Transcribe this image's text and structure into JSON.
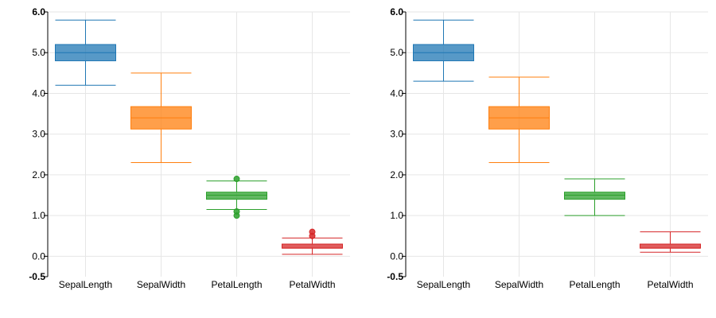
{
  "chart_data": [
    {
      "type": "boxplot",
      "ylim": [
        -0.5,
        6.0
      ],
      "yticks": [
        {
          "value": 6.0,
          "label": "6.0"
        },
        {
          "value": 5.0,
          "label": "5.0"
        },
        {
          "value": 4.0,
          "label": "4.0"
        },
        {
          "value": 3.0,
          "label": "3.0"
        },
        {
          "value": 2.0,
          "label": "2.0"
        },
        {
          "value": 1.0,
          "label": "1.0"
        },
        {
          "value": 0.0,
          "label": "0.0"
        },
        {
          "value": -0.5,
          "label": "-0.5"
        }
      ],
      "grid": true,
      "categories": [
        "SepalLength",
        "SepalWidth",
        "PetalLength",
        "PetalWidth"
      ],
      "colors": [
        "#1f77b4",
        "#ff7f0e",
        "#2ca02c",
        "#d62728"
      ],
      "boxes": [
        {
          "whisker_low": 4.2,
          "q1": 4.8,
          "median": 5.0,
          "q3": 5.2,
          "whisker_high": 5.8,
          "outliers": []
        },
        {
          "whisker_low": 2.3,
          "q1": 3.125,
          "median": 3.4,
          "q3": 3.675,
          "whisker_high": 4.5,
          "outliers": []
        },
        {
          "whisker_low": 1.15,
          "q1": 1.4,
          "median": 1.5,
          "q3": 1.575,
          "whisker_high": 1.85,
          "outliers": [
            1.0,
            1.1,
            1.9
          ]
        },
        {
          "whisker_low": 0.05,
          "q1": 0.2,
          "median": 0.2,
          "q3": 0.3,
          "whisker_high": 0.45,
          "outliers": [
            0.5,
            0.6
          ]
        }
      ]
    },
    {
      "type": "boxplot",
      "ylim": [
        -0.5,
        6.0
      ],
      "yticks": [
        {
          "value": 6.0,
          "label": "6.0"
        },
        {
          "value": 5.0,
          "label": "5.0"
        },
        {
          "value": 4.0,
          "label": "4.0"
        },
        {
          "value": 3.0,
          "label": "3.0"
        },
        {
          "value": 2.0,
          "label": "2.0"
        },
        {
          "value": 1.0,
          "label": "1.0"
        },
        {
          "value": 0.0,
          "label": "0.0"
        },
        {
          "value": -0.5,
          "label": "-0.5"
        }
      ],
      "grid": true,
      "categories": [
        "SepalLength",
        "SepalWidth",
        "PetalLength",
        "PetalWidth"
      ],
      "colors": [
        "#1f77b4",
        "#ff7f0e",
        "#2ca02c",
        "#d62728"
      ],
      "boxes": [
        {
          "whisker_low": 4.3,
          "q1": 4.8,
          "median": 5.0,
          "q3": 5.2,
          "whisker_high": 5.8,
          "outliers": []
        },
        {
          "whisker_low": 2.3,
          "q1": 3.125,
          "median": 3.4,
          "q3": 3.675,
          "whisker_high": 4.4,
          "outliers": []
        },
        {
          "whisker_low": 1.0,
          "q1": 1.4,
          "median": 1.5,
          "q3": 1.575,
          "whisker_high": 1.9,
          "outliers": []
        },
        {
          "whisker_low": 0.1,
          "q1": 0.2,
          "median": 0.2,
          "q3": 0.3,
          "whisker_high": 0.6,
          "outliers": []
        }
      ]
    }
  ]
}
